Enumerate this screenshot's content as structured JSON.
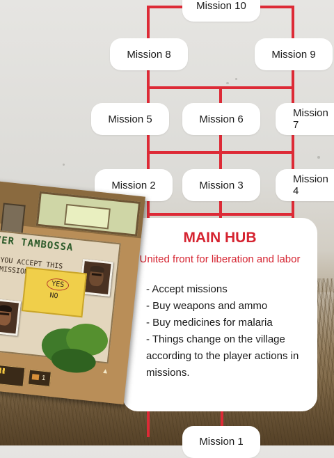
{
  "mission_tree": {
    "missions": {
      "m10": "Mission 10",
      "m8": "Mission 8",
      "m9": "Mission 9",
      "m5": "Mission 5",
      "m6": "Mission 6",
      "m7": "Mission 7",
      "m2": "Mission 2",
      "m3": "Mission 3",
      "m4": "Mission 4",
      "m1": "Mission 1"
    },
    "line_color": "#dd2a36"
  },
  "hub": {
    "title": "MAIN HUB",
    "subtitle": "United front for liberation and labor",
    "items": [
      "- Accept missions",
      "- Buy weapons and ammo",
      "- Buy medicines for malaria",
      "- Things change on the village",
      "according to the player actions in",
      "missions."
    ],
    "accent": "#d52330"
  },
  "game_screenshot": {
    "speaker_name": "NVER TAMBOSSA",
    "question": "DO YOU ACCEPT THIS\n   MISSION?",
    "option_yes": "YES",
    "option_no": "NO",
    "hud_infinity": "∞",
    "hud_count": "1"
  }
}
